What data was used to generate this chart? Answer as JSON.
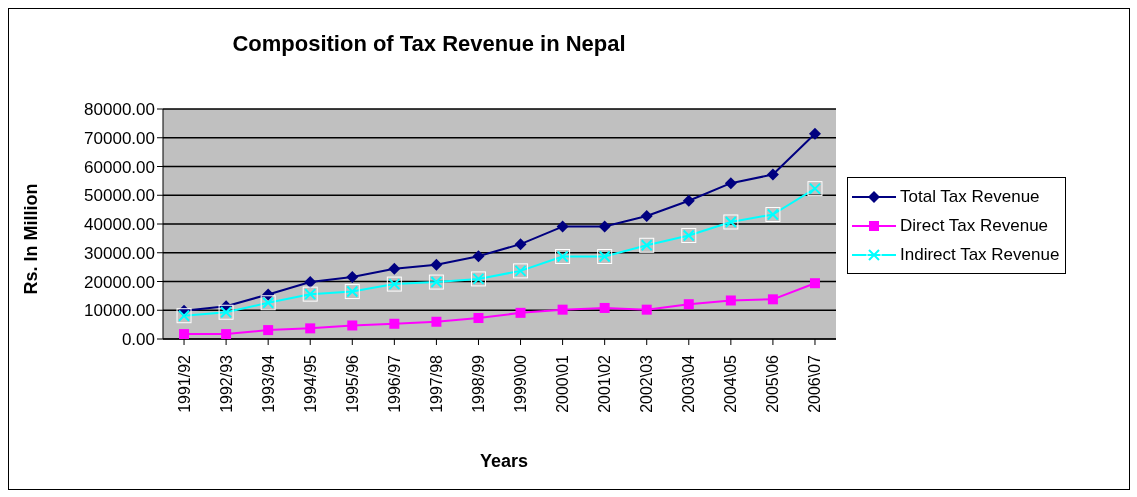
{
  "chart_data": {
    "type": "line",
    "title": "Composition of Tax Revenue in Nepal",
    "xlabel": "Years",
    "ylabel": "Rs. In Million",
    "categories": [
      "1991/92",
      "1992/93",
      "1993/94",
      "1994/95",
      "1995/96",
      "1996/97",
      "1997/98",
      "1998/99",
      "1999\\00",
      "2000\\01",
      "2001\\02",
      "2002\\03",
      "2003\\04",
      "2004\\05",
      "2005\\06",
      "2006\\07"
    ],
    "series": [
      {
        "name": "Total Tax Revenue",
        "color": "#000080",
        "marker": "diamond",
        "values": [
          9800,
          11400,
          15500,
          19800,
          21600,
          24400,
          25800,
          28800,
          33000,
          39100,
          39100,
          42800,
          48100,
          54200,
          57200,
          71400
        ]
      },
      {
        "name": "Direct Tax Revenue",
        "color": "#ff00ff",
        "marker": "square",
        "values": [
          1700,
          1700,
          3100,
          3700,
          4700,
          5300,
          6000,
          7300,
          9100,
          10200,
          10800,
          10200,
          12100,
          13400,
          13800,
          19400
        ]
      },
      {
        "name": "Indirect Tax Revenue",
        "color": "#00ffff",
        "marker": "cross",
        "values": [
          8100,
          9300,
          12600,
          15600,
          16500,
          19100,
          19800,
          20900,
          23700,
          28700,
          28700,
          32600,
          36000,
          40700,
          43300,
          52300
        ]
      }
    ],
    "ylim": [
      0,
      80000
    ],
    "yticks": [
      {
        "value": 0,
        "label": "0.00"
      },
      {
        "value": 10000,
        "label": "10000.00"
      },
      {
        "value": 20000,
        "label": "20000.00"
      },
      {
        "value": 30000,
        "label": "30000.00"
      },
      {
        "value": 40000,
        "label": "40000.00"
      },
      {
        "value": 50000,
        "label": "50000.00"
      },
      {
        "value": 60000,
        "label": "60000.00"
      },
      {
        "value": 70000,
        "label": "70000.00"
      },
      {
        "value": 80000,
        "label": "80000.00"
      }
    ],
    "grid": "y",
    "legend": "right",
    "line_style": "solid"
  }
}
